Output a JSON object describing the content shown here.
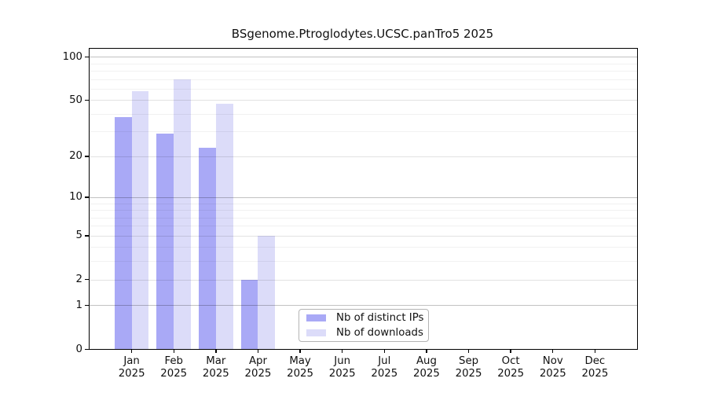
{
  "chart_data": {
    "type": "bar",
    "title": "BSgenome.Ptroglodytes.UCSC.panTro5 2025",
    "categories": [
      "Jan 2025",
      "Feb 2025",
      "Mar 2025",
      "Apr 2025",
      "May 2025",
      "Jun 2025",
      "Jul 2025",
      "Aug 2025",
      "Sep 2025",
      "Oct 2025",
      "Nov 2025",
      "Dec 2025"
    ],
    "series": [
      {
        "name": "Nb of distinct IPs",
        "color": "#a9a9f6",
        "values": [
          38,
          29,
          23,
          2,
          0,
          0,
          0,
          0,
          0,
          0,
          0,
          0
        ]
      },
      {
        "name": "Nb of downloads",
        "color": "#dcdcf9",
        "values": [
          58,
          70,
          47,
          5,
          0,
          0,
          0,
          0,
          0,
          0,
          0,
          0
        ]
      }
    ],
    "xlabel": "",
    "ylabel": "",
    "y_axis": {
      "scale": "log10(value+1)",
      "tick_labels": [
        0,
        1,
        2,
        5,
        10,
        20,
        50,
        100
      ],
      "strong_gridlines": [
        1,
        10,
        100
      ],
      "mid_gridlines": [
        2,
        5,
        20,
        50
      ],
      "minor_gridlines": [
        3,
        4,
        6,
        7,
        8,
        9,
        30,
        40,
        60,
        70,
        80,
        90
      ],
      "ylim": [
        0,
        114
      ]
    },
    "grid": "horizontal",
    "legend_position": "bottom-center-inside",
    "background": "#ffffff",
    "axis_color": "#000000"
  }
}
